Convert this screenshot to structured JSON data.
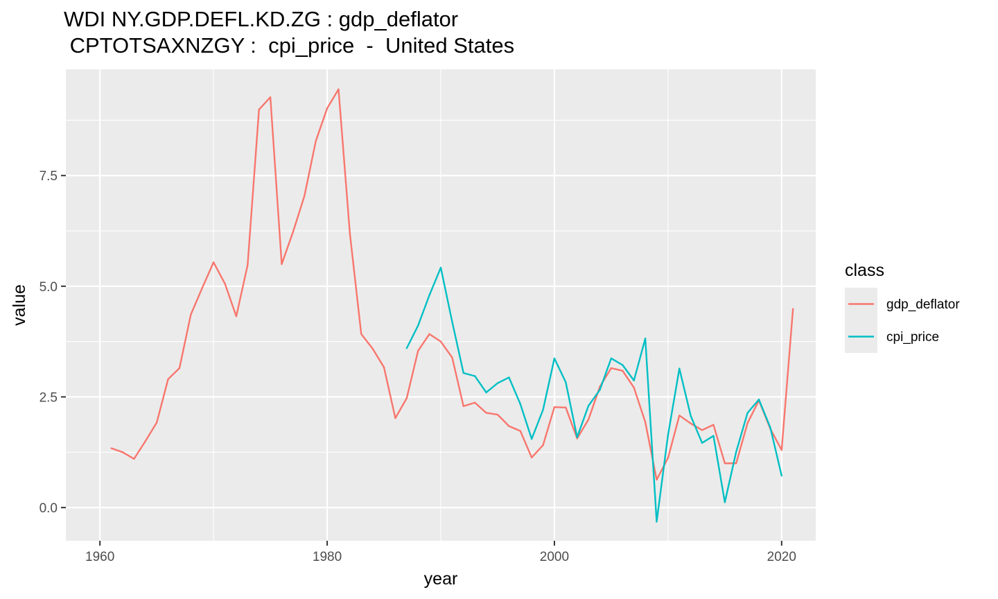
{
  "chart_data": {
    "type": "line",
    "title": "WDI  NY.GDP.DEFL.KD.ZG :  gdp_deflator",
    "subtitle": " CPTOTSAXNZGY :  cpi_price  -  United States",
    "xlabel": "year",
    "ylabel": "value",
    "xlim": [
      1957,
      2023
    ],
    "ylim": [
      -0.75,
      9.9
    ],
    "x_ticks": [
      1960,
      1980,
      2000,
      2020
    ],
    "x_tick_labels": [
      "1960",
      "1980",
      "2000",
      "2020"
    ],
    "y_ticks": [
      0,
      2.5,
      5,
      7.5
    ],
    "y_tick_labels": [
      "0.0",
      "2.5",
      "5.0",
      "7.5"
    ],
    "grid": true,
    "legend": {
      "title": "class",
      "position": "right"
    },
    "series": [
      {
        "name": "gdp_deflator",
        "color": "#F8766D",
        "x": [
          1961,
          1962,
          1963,
          1964,
          1965,
          1966,
          1967,
          1968,
          1969,
          1970,
          1971,
          1972,
          1973,
          1974,
          1975,
          1976,
          1977,
          1978,
          1979,
          1980,
          1981,
          1982,
          1983,
          1984,
          1985,
          1986,
          1987,
          1988,
          1989,
          1990,
          1991,
          1992,
          1993,
          1994,
          1995,
          1996,
          1997,
          1998,
          1999,
          2000,
          2001,
          2002,
          2003,
          2004,
          2005,
          2006,
          2007,
          2008,
          2009,
          2010,
          2011,
          2012,
          2013,
          2014,
          2015,
          2016,
          2017,
          2018,
          2019,
          2020,
          2021
        ],
        "y": [
          1.34,
          1.25,
          1.1,
          1.5,
          1.92,
          2.9,
          3.15,
          4.36,
          4.96,
          5.54,
          5.06,
          4.32,
          5.48,
          8.99,
          9.27,
          5.5,
          6.23,
          7.04,
          8.28,
          9.02,
          9.45,
          6.19,
          3.92,
          3.59,
          3.17,
          2.02,
          2.47,
          3.54,
          3.92,
          3.75,
          3.39,
          2.29,
          2.37,
          2.14,
          2.1,
          1.84,
          1.73,
          1.13,
          1.41,
          2.27,
          2.26,
          1.56,
          1.99,
          2.73,
          3.15,
          3.09,
          2.71,
          1.93,
          0.63,
          1.12,
          2.08,
          1.9,
          1.75,
          1.87,
          1.0,
          1.0,
          1.91,
          2.42,
          1.78,
          1.3,
          4.49
        ]
      },
      {
        "name": "cpi_price",
        "color": "#00BFC4",
        "x": [
          1987,
          1988,
          1989,
          1990,
          1991,
          1992,
          1993,
          1994,
          1995,
          1996,
          1997,
          1998,
          1999,
          2000,
          2001,
          2002,
          2003,
          2004,
          2005,
          2006,
          2007,
          2008,
          2009,
          2010,
          2011,
          2012,
          2013,
          2014,
          2015,
          2016,
          2017,
          2018,
          2019,
          2020
        ],
        "y": [
          3.6,
          4.11,
          4.8,
          5.42,
          4.2,
          3.04,
          2.97,
          2.6,
          2.81,
          2.94,
          2.34,
          1.55,
          2.21,
          3.37,
          2.83,
          1.59,
          2.3,
          2.66,
          3.37,
          3.22,
          2.87,
          3.82,
          -0.32,
          1.64,
          3.14,
          2.07,
          1.46,
          1.62,
          0.12,
          1.26,
          2.14,
          2.44,
          1.81,
          0.72
        ]
      }
    ]
  }
}
